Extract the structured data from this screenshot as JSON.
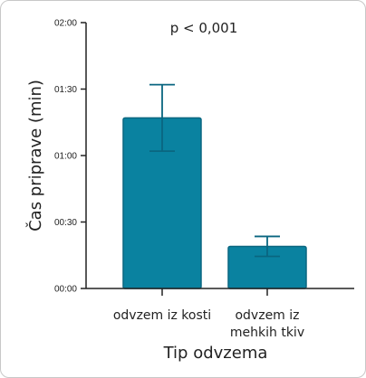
{
  "chart_data": {
    "type": "bar",
    "title": "",
    "xlabel": "Tip odvzema",
    "ylabel": "Čas priprave (min)",
    "annotation": "p < 0,001",
    "y_unit": "seconds",
    "ylim": [
      0,
      120
    ],
    "yticks": [
      0,
      30,
      60,
      90,
      120
    ],
    "ytick_labels": [
      "00:00",
      "00:30",
      "01:00",
      "01:30",
      "02:00"
    ],
    "categories": [
      [
        "odvzem iz kosti"
      ],
      [
        "odvzem iz",
        "mehkih tkiv"
      ]
    ],
    "values": [
      77,
      19
    ],
    "error_high": [
      92,
      23.5
    ],
    "error_low": [
      62,
      14.5
    ],
    "bar_color": "#0a82a0",
    "bar_edge_color": "#0a6680",
    "error_color": "#0a6680",
    "grid": false,
    "legend": "none"
  }
}
